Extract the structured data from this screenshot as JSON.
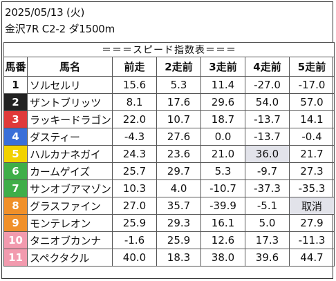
{
  "header": {
    "date": "2025/05/13 (火)",
    "race": "金沢7R C2-2 ダ1500m"
  },
  "table": {
    "banner": "＝＝＝スピード指数表＝＝＝",
    "columns": [
      "馬番",
      "馬名",
      "前走",
      "2走前",
      "3走前",
      "4走前",
      "5走前"
    ],
    "highlight_color": "#e2e3ea",
    "rows": [
      {
        "num": "1",
        "name": "ソルセルリ",
        "vals": [
          "15.6",
          "5.3",
          "11.4",
          "-27.0",
          "-17.0"
        ],
        "bg": "#ffffff",
        "fg": "#111111",
        "hl": []
      },
      {
        "num": "2",
        "name": "ザントブリッツ",
        "vals": [
          "8.1",
          "17.6",
          "29.6",
          "54.0",
          "57.0"
        ],
        "bg": "#222222",
        "fg": "#ffffff",
        "hl": []
      },
      {
        "num": "3",
        "name": "ラッキードラゴン",
        "vals": [
          "22.0",
          "10.7",
          "18.7",
          "-13.7",
          "14.1"
        ],
        "bg": "#e03a3a",
        "fg": "#ffffff",
        "hl": []
      },
      {
        "num": "4",
        "name": "ダスティー",
        "vals": [
          "-4.3",
          "27.6",
          "0.0",
          "-13.7",
          "-0.4"
        ],
        "bg": "#3a6fd8",
        "fg": "#ffffff",
        "hl": []
      },
      {
        "num": "5",
        "name": "ハルカナネガイ",
        "vals": [
          "24.3",
          "23.6",
          "21.0",
          "36.0",
          "21.7"
        ],
        "bg": "#f2d200",
        "fg": "#ffffff",
        "hl": [
          3
        ]
      },
      {
        "num": "6",
        "name": "カームゲイズ",
        "vals": [
          "25.7",
          "29.7",
          "5.3",
          "-9.7",
          "27.3"
        ],
        "bg": "#3fae49",
        "fg": "#ffffff",
        "hl": []
      },
      {
        "num": "7",
        "name": "サンオブアマゾン",
        "vals": [
          "10.3",
          "4.0",
          "-10.7",
          "-37.3",
          "-35.3"
        ],
        "bg": "#3fae49",
        "fg": "#ffffff",
        "hl": []
      },
      {
        "num": "8",
        "name": "グラスファイン",
        "vals": [
          "27.0",
          "35.7",
          "-39.9",
          "-5.1",
          "取消"
        ],
        "bg": "#f0902a",
        "fg": "#ffffff",
        "hl": [
          4
        ]
      },
      {
        "num": "9",
        "name": "モンテレオン",
        "vals": [
          "25.9",
          "29.3",
          "16.1",
          "5.0",
          "27.9"
        ],
        "bg": "#f0902a",
        "fg": "#ffffff",
        "hl": []
      },
      {
        "num": "10",
        "name": "タニオブカンナ",
        "vals": [
          "-1.6",
          "25.9",
          "12.6",
          "17.3",
          "-11.3"
        ],
        "bg": "#f29aae",
        "fg": "#ffffff",
        "hl": []
      },
      {
        "num": "11",
        "name": "スペクタクル",
        "vals": [
          "40.0",
          "18.3",
          "38.0",
          "39.6",
          "44.7"
        ],
        "bg": "#f29aae",
        "fg": "#ffffff",
        "hl": []
      }
    ]
  }
}
